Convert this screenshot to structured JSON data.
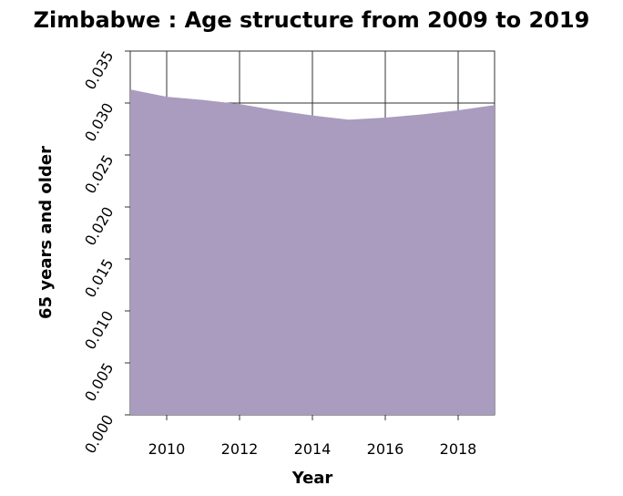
{
  "chart_data": {
    "type": "area",
    "title": "Zimbabwe : Age structure from 2009 to 2019",
    "xlabel": "Year",
    "ylabel": "65 years and older",
    "x": [
      2009,
      2010,
      2011,
      2012,
      2013,
      2014,
      2015,
      2016,
      2017,
      2018,
      2019
    ],
    "series": [
      {
        "values": [
          0.0313,
          0.0306,
          0.0303,
          0.0299,
          0.0293,
          0.0288,
          0.0284,
          0.0286,
          0.0289,
          0.0293,
          0.0298
        ],
        "color": "#a99cbf"
      }
    ],
    "xlim": [
      2009,
      2019
    ],
    "ylim": [
      0,
      0.035
    ],
    "xticks": [
      2010,
      2012,
      2014,
      2016,
      2018
    ],
    "yticks": [
      "0.000",
      "0.005",
      "0.010",
      "0.015",
      "0.020",
      "0.025",
      "0.030",
      "0.035"
    ],
    "grid": true
  }
}
